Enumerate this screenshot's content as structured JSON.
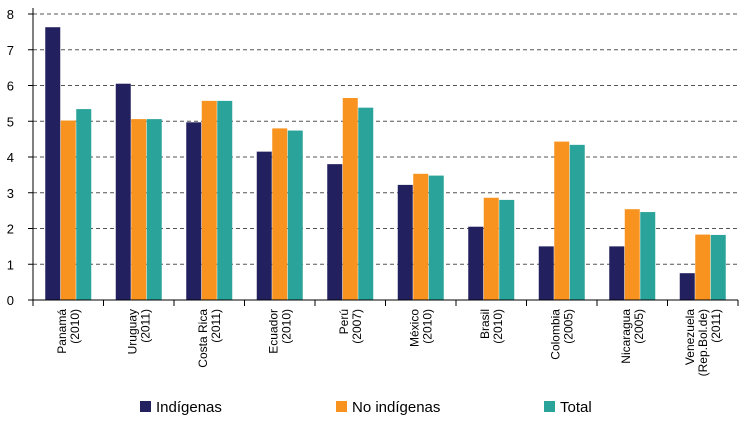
{
  "chart_data": {
    "type": "bar",
    "categories": [
      [
        "Panamá",
        "(2010)"
      ],
      [
        "Uruguay",
        "(2011)"
      ],
      [
        "Costa Rica",
        "(2011)"
      ],
      [
        "Ecuador",
        "(2010)"
      ],
      [
        "Perú",
        "(2007)"
      ],
      [
        "México",
        "(2010)"
      ],
      [
        "Brasil",
        "(2010)"
      ],
      [
        "Colombia",
        "(2005)"
      ],
      [
        "Nicaragua",
        "(2005)"
      ],
      [
        "Venezuela",
        "(Rep.Bol.de)",
        "(2011)"
      ]
    ],
    "series": [
      {
        "name": "Indígenas",
        "color": "#22205f",
        "values": [
          7.63,
          6.05,
          4.97,
          4.15,
          3.8,
          3.22,
          2.05,
          1.5,
          1.5,
          0.75
        ]
      },
      {
        "name": "No indígenas",
        "color": "#f7931e",
        "values": [
          5.02,
          5.06,
          5.57,
          4.8,
          5.65,
          3.53,
          2.86,
          4.43,
          2.54,
          1.83
        ]
      },
      {
        "name": "Total",
        "color": "#2aa39a",
        "values": [
          5.34,
          5.06,
          5.57,
          4.74,
          5.38,
          3.48,
          2.8,
          4.34,
          2.46,
          1.82
        ]
      }
    ],
    "y_ticks": [
      "0",
      "1",
      "2",
      "3",
      "4",
      "5",
      "6",
      "7",
      "8"
    ],
    "ylim": [
      0,
      8
    ],
    "grid": "horizontal dashed",
    "legend_position": "bottom"
  }
}
